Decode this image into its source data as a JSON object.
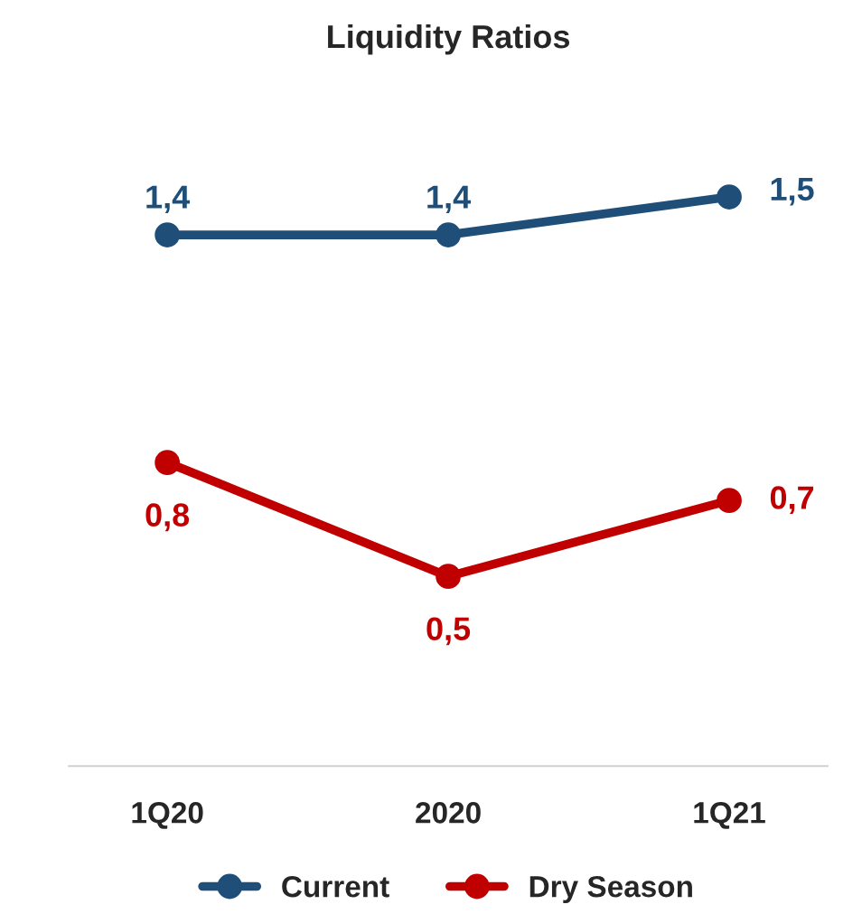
{
  "chart_data": {
    "type": "line",
    "title": "Liquidity Ratios",
    "categories": [
      "1Q20",
      "2020",
      "1Q21"
    ],
    "series": [
      {
        "name": "Current",
        "color": "#1f4e79",
        "values": [
          1.4,
          1.4,
          1.5
        ],
        "value_labels": [
          "1,4",
          "1,4",
          "1,5"
        ]
      },
      {
        "name": "Dry Season",
        "color": "#c00000",
        "values": [
          0.8,
          0.5,
          0.7
        ],
        "value_labels": [
          "0,8",
          "0,5",
          "0,7"
        ]
      }
    ],
    "marker": "circle",
    "line_style": "solid",
    "legend": "bottom",
    "grid": false,
    "tick_labels": "x"
  }
}
